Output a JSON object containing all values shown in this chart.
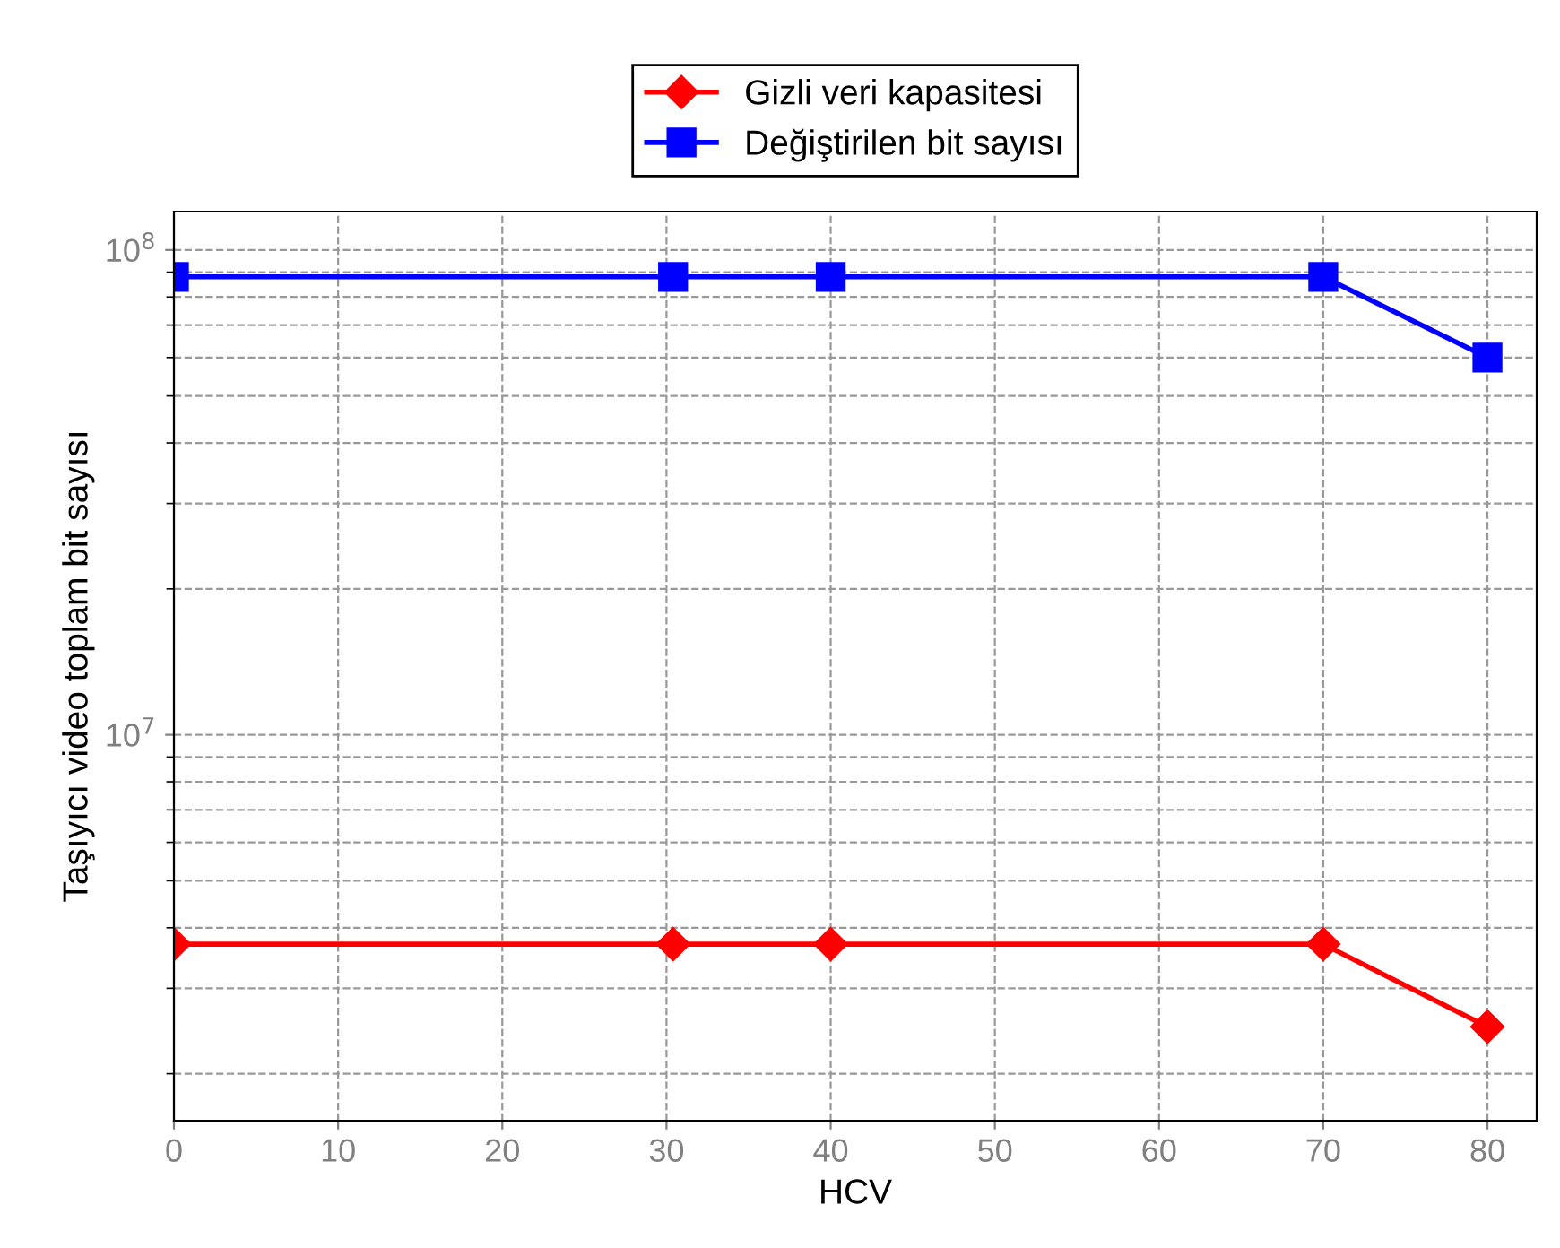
{
  "chart_data": {
    "type": "line",
    "xlabel": "HCV",
    "ylabel": "Taşıyıcı video toplam bit sayısı",
    "log": "y",
    "xlim": [
      0,
      83
    ],
    "xticks": [
      0,
      10,
      20,
      30,
      40,
      50,
      60,
      70,
      80
    ],
    "ylim": [
      1600000,
      120000000
    ],
    "yticks": [
      {
        "value": 10000000,
        "label": "10$^{7}$"
      },
      {
        "value": 100000000,
        "label": "10$^{8}$"
      }
    ],
    "grid": true,
    "legend": "top",
    "line_style": "solid",
    "series": [
      {
        "name": "Gizli veri kapasitesi",
        "color": "#ff0000",
        "marker": "diamond",
        "x": [
          0,
          30.4,
          40,
          70,
          80
        ],
        "values": [
          3700000,
          3700000,
          3700000,
          3700000,
          2500000
        ]
      },
      {
        "name": "Değiştirilen bit sayısı",
        "color": "#0000ff",
        "marker": "square",
        "x": [
          0,
          30.4,
          40,
          70,
          80
        ],
        "values": [
          88000000,
          88000000,
          88000000,
          88000000,
          60000000
        ]
      }
    ]
  }
}
